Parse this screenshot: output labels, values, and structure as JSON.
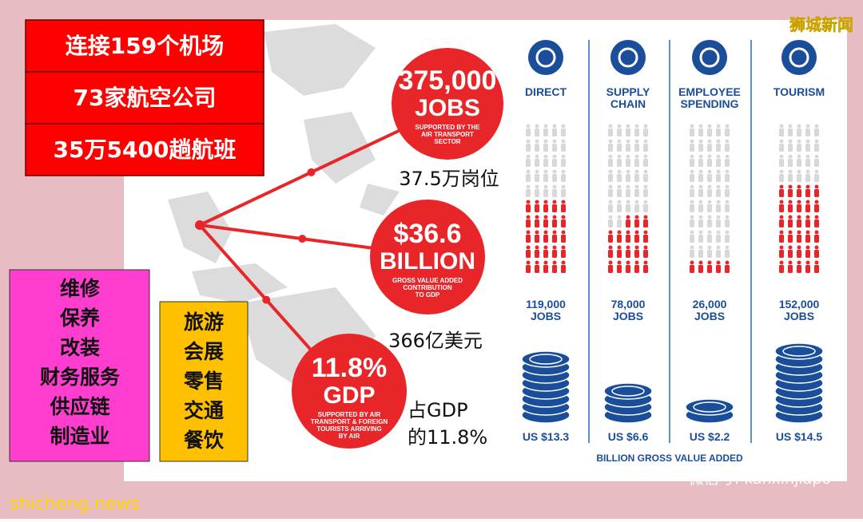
{
  "header": {
    "watermark": "狮城新闻"
  },
  "stats_boxes": [
    "连接159个机场",
    "73家航空公司",
    "35万5400趟航班"
  ],
  "industry_list": [
    "维修",
    "保养",
    "改装",
    "财务服务",
    "供应链",
    "制造业"
  ],
  "tourism_list": [
    "旅游",
    "会展",
    "零售",
    "交通",
    "餐饮"
  ],
  "circles": [
    {
      "figure": "375,000",
      "unit": "JOBS",
      "caption": [
        "SUPPORTED BY THE",
        "AIR TRANSPORT",
        "SECTOR"
      ],
      "chinese": [
        "37.5万岗位"
      ]
    },
    {
      "figure": "$36.6",
      "unit": "BILLION",
      "caption": [
        "GROSS VALUE ADDED",
        "CONTRIBUTION",
        "TO GDP"
      ],
      "chinese": [
        "366亿美元"
      ]
    },
    {
      "figure": "11.8%",
      "unit": "GDP",
      "caption": [
        "SUPPORTED BY AIR",
        "TRANSPORT & FOREIGN",
        "TOURISTS ARRIVING",
        "BY AIR"
      ],
      "chinese": [
        "占GDP",
        "的11.8%"
      ]
    }
  ],
  "columns": [
    {
      "title": [
        "DIRECT"
      ],
      "jobs": "119,000",
      "jobs_unit": "JOBS",
      "value": "US $13.3"
    },
    {
      "title": [
        "SUPPLY",
        "CHAIN"
      ],
      "jobs": "78,000",
      "jobs_unit": "JOBS",
      "value": "US $6.6"
    },
    {
      "title": [
        "EMPLOYEE",
        "SPENDING"
      ],
      "jobs": "26,000",
      "jobs_unit": "JOBS",
      "value": "US $2.2"
    },
    {
      "title": [
        "TOURISM"
      ],
      "jobs": "152,000",
      "jobs_unit": "JOBS",
      "value": "US $14.5"
    }
  ],
  "footer_note": "BILLION GROSS VALUE ADDED",
  "site_watermark": "shicheng.news",
  "wechat_id": "微信号: kanxinjiapo"
}
